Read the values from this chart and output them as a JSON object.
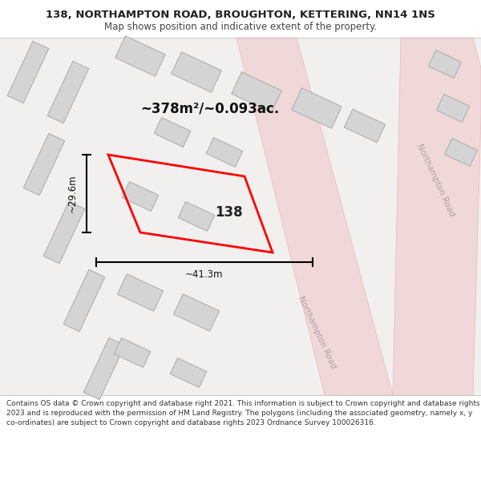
{
  "title_line1": "138, NORTHAMPTON ROAD, BROUGHTON, KETTERING, NN14 1NS",
  "title_line2": "Map shows position and indicative extent of the property.",
  "area_text": "~378m²/~0.093ac.",
  "width_text": "~41.3m",
  "height_text": "~29.6m",
  "property_number": "138",
  "road_label_1": "Northampton Road",
  "road_label_2": "Northampton Road",
  "footer_text": "Contains OS data © Crown copyright and database right 2021. This information is subject to Crown copyright and database rights 2023 and is reproduced with the permission of HM Land Registry. The polygons (including the associated geometry, namely x, y co-ordinates) are subject to Crown copyright and database rights 2023 Ordnance Survey 100026316.",
  "map_bg": "#f2efef",
  "road_fill": "#f0d8d8",
  "road_edge": "#e8b8b8",
  "building_fill": "#d4d4d4",
  "building_edge": "#aaaaaa",
  "highlight_color": "#ff0000",
  "title_color": "#222222",
  "subtitle_color": "#444444",
  "footer_color": "#333333",
  "road_text_color": "#b0a0a0",
  "dim_text_color": "#111111",
  "area_text_color": "#111111"
}
